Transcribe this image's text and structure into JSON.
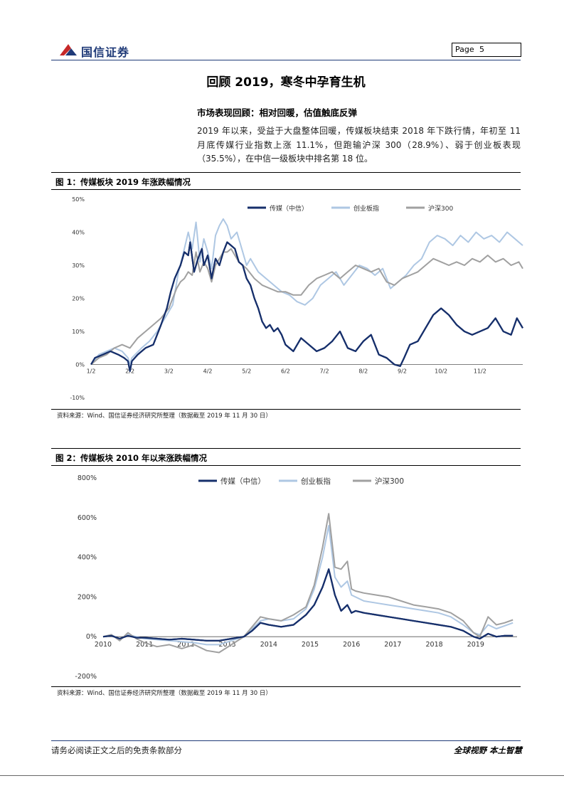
{
  "header": {
    "company": "国信证券",
    "page_label": "Page",
    "page_number": "5"
  },
  "title": "回顾 2019，寒冬中孕育生机",
  "section_title": "市场表现回顾：相对回暖，估值触底反弹",
  "paragraph": "2019 年以来，受益于大盘整体回暖，传媒板块结束 2018 年下跌行情，年初至 11 月底传媒行业指数上涨 11.1%，但跑输沪深 300（28.9%）、弱于创业板表现（35.5%），在中信一级板块中排名第 18 位。",
  "figure1": {
    "title": "图 1：传媒板块 2019 年涨跌幅情况",
    "source": "资料来源：Wind、国信证券经济研究所整理（数据截至 2019 年 11 月 30 日）"
  },
  "figure2": {
    "title": "图 2：传媒板块 2010 年以来涨跌幅情况",
    "source": "资料来源：Wind、国信证券经济研究所整理（数据截至 2019 年 11 月 30 日）"
  },
  "colors": {
    "media": "#162f6b",
    "chinext": "#aec7e3",
    "csi300": "#a0a0a0",
    "brand": "#1f3a78"
  },
  "chart_data": [
    {
      "type": "line",
      "yticks": [
        "50%",
        "40%",
        "30%",
        "20%",
        "10%",
        "0%",
        "-10%"
      ],
      "ylim": [
        -10,
        50
      ],
      "x_tick_labels": [
        "1/2",
        "2/2",
        "3/2",
        "4/2",
        "5/2",
        "6/2",
        "7/2",
        "8/2",
        "9/2",
        "10/2",
        "11/2"
      ],
      "x_range": [
        0,
        11.1
      ],
      "legend_position": "top",
      "series": [
        {
          "name": "传媒（中信）",
          "color": "#162f6b",
          "x": [
            0,
            0.1,
            0.3,
            0.5,
            0.7,
            0.85,
            0.95,
            1.0,
            1.05,
            1.2,
            1.4,
            1.6,
            1.8,
            1.95,
            2.05,
            2.15,
            2.3,
            2.4,
            2.5,
            2.55,
            2.65,
            2.75,
            2.85,
            2.9,
            3.0,
            3.1,
            3.2,
            3.3,
            3.4,
            3.5,
            3.6,
            3.7,
            3.8,
            3.9,
            4.0,
            4.1,
            4.2,
            4.3,
            4.4,
            4.5,
            4.6,
            4.7,
            4.8,
            4.9,
            5.0,
            5.2,
            5.4,
            5.6,
            5.8,
            6.0,
            6.2,
            6.4,
            6.6,
            6.8,
            7.0,
            7.2,
            7.4,
            7.6,
            7.8,
            7.95,
            8.05,
            8.2,
            8.4,
            8.6,
            8.8,
            9.0,
            9.2,
            9.4,
            9.6,
            9.8,
            10.0,
            10.2,
            10.4,
            10.6,
            10.8,
            10.95,
            11.05,
            11.1
          ],
          "y": [
            0,
            2,
            3,
            4,
            3,
            2,
            1,
            -2,
            1,
            3,
            5,
            6,
            12,
            17,
            22,
            26,
            30,
            34,
            33,
            37,
            28,
            32,
            35,
            30,
            33,
            26,
            32,
            30,
            34,
            37,
            36,
            35,
            31,
            30,
            26,
            24,
            20,
            17,
            13,
            11,
            12,
            10,
            11,
            9,
            6,
            4,
            8,
            6,
            4,
            5,
            7,
            10,
            5,
            4,
            7,
            9,
            3,
            2,
            0,
            -0.5,
            2,
            6,
            7,
            11,
            15,
            17,
            15,
            12,
            10,
            9,
            10,
            11,
            14,
            10,
            9,
            14,
            12,
            11
          ]
        },
        {
          "name": "创业板指",
          "color": "#aec7e3",
          "x": [
            0,
            0.2,
            0.4,
            0.6,
            0.8,
            0.95,
            1.0,
            1.05,
            1.3,
            1.5,
            1.7,
            1.9,
            2.1,
            2.25,
            2.4,
            2.5,
            2.6,
            2.7,
            2.8,
            2.9,
            3.0,
            3.1,
            3.2,
            3.3,
            3.4,
            3.5,
            3.6,
            3.75,
            3.9,
            4.0,
            4.1,
            4.3,
            4.5,
            4.7,
            4.9,
            5.1,
            5.3,
            5.5,
            5.7,
            5.9,
            6.1,
            6.3,
            6.5,
            6.7,
            6.9,
            7.1,
            7.3,
            7.5,
            7.7,
            7.9,
            8.1,
            8.3,
            8.5,
            8.7,
            8.9,
            9.1,
            9.3,
            9.5,
            9.7,
            9.9,
            10.1,
            10.3,
            10.5,
            10.7,
            10.9,
            11.0,
            11.1
          ],
          "y": [
            0,
            3,
            4,
            5,
            4,
            2,
            0,
            2,
            5,
            7,
            10,
            14,
            18,
            28,
            35,
            40,
            35,
            43,
            31,
            38,
            34,
            29,
            39,
            42,
            44,
            42,
            38,
            40,
            34,
            30,
            32,
            28,
            26,
            24,
            22,
            21,
            19,
            18,
            20,
            24,
            26,
            28,
            24,
            27,
            30,
            29,
            27,
            29,
            23,
            25,
            27,
            30,
            32,
            37,
            39,
            38,
            36,
            39,
            37,
            40,
            38,
            39,
            37,
            40,
            38,
            37,
            36
          ]
        },
        {
          "name": "沪深300",
          "color": "#a0a0a0",
          "x": [
            0,
            0.2,
            0.4,
            0.6,
            0.8,
            1.0,
            1.2,
            1.4,
            1.6,
            1.8,
            2.0,
            2.1,
            2.2,
            2.3,
            2.4,
            2.5,
            2.6,
            2.7,
            2.8,
            2.9,
            3.0,
            3.1,
            3.2,
            3.3,
            3.4,
            3.5,
            3.6,
            3.7,
            3.8,
            3.9,
            4.0,
            4.2,
            4.4,
            4.6,
            4.8,
            5.0,
            5.2,
            5.4,
            5.6,
            5.8,
            6.0,
            6.2,
            6.4,
            6.6,
            6.8,
            7.0,
            7.2,
            7.4,
            7.6,
            7.8,
            8.0,
            8.2,
            8.4,
            8.6,
            8.8,
            9.0,
            9.2,
            9.4,
            9.6,
            9.8,
            10.0,
            10.2,
            10.4,
            10.6,
            10.8,
            11.0,
            11.1
          ],
          "y": [
            0,
            2,
            3,
            5,
            6,
            5,
            8,
            10,
            12,
            14,
            17,
            20,
            23,
            25,
            26,
            28,
            27,
            34,
            28,
            31,
            29,
            25,
            30,
            32,
            34,
            34,
            35,
            33,
            31,
            30,
            29,
            26,
            24,
            23,
            22,
            22,
            21,
            21,
            24,
            26,
            27,
            28,
            26,
            28,
            30,
            29,
            28,
            29,
            25,
            24,
            26,
            27,
            28,
            30,
            32,
            31,
            30,
            31,
            30,
            32,
            31,
            33,
            31,
            32,
            30,
            31,
            29
          ]
        }
      ]
    },
    {
      "type": "line",
      "yticks": [
        "800%",
        "600%",
        "400%",
        "200%",
        "0%",
        "-200%"
      ],
      "ylim": [
        -200,
        800
      ],
      "x_tick_labels": [
        "2010",
        "2011",
        "2012",
        "2013",
        "2014",
        "2015",
        "2016",
        "2017",
        "2018",
        "2019"
      ],
      "x_range": [
        2010,
        2020
      ],
      "legend_position": "top",
      "series": [
        {
          "name": "传媒（中信）",
          "color": "#162f6b",
          "x": [
            2010.0,
            2010.2,
            2010.4,
            2010.6,
            2010.8,
            2011.0,
            2011.3,
            2011.6,
            2011.9,
            2012.2,
            2012.5,
            2012.8,
            2013.1,
            2013.4,
            2013.6,
            2013.8,
            2014.0,
            2014.3,
            2014.6,
            2014.9,
            2015.1,
            2015.3,
            2015.45,
            2015.6,
            2015.75,
            2015.9,
            2016.0,
            2016.1,
            2016.3,
            2016.6,
            2016.9,
            2017.2,
            2017.5,
            2017.8,
            2018.1,
            2018.4,
            2018.7,
            2018.95,
            2019.1,
            2019.3,
            2019.5,
            2019.7,
            2019.9
          ],
          "y": [
            0,
            5,
            -10,
            5,
            -5,
            -5,
            -10,
            -15,
            -10,
            -15,
            -20,
            -20,
            -10,
            0,
            30,
            70,
            60,
            50,
            60,
            110,
            160,
            250,
            340,
            210,
            130,
            160,
            120,
            130,
            120,
            110,
            100,
            90,
            80,
            70,
            60,
            50,
            30,
            0,
            -10,
            15,
            0,
            5,
            5
          ]
        },
        {
          "name": "创业板指",
          "color": "#aec7e3",
          "x": [
            2010.0,
            2010.2,
            2010.4,
            2010.6,
            2010.8,
            2011.0,
            2011.3,
            2011.6,
            2011.9,
            2012.2,
            2012.5,
            2012.8,
            2013.1,
            2013.4,
            2013.6,
            2013.8,
            2014.0,
            2014.3,
            2014.6,
            2014.9,
            2015.1,
            2015.3,
            2015.45,
            2015.6,
            2015.75,
            2015.9,
            2016.0,
            2016.1,
            2016.3,
            2016.6,
            2016.9,
            2017.2,
            2017.5,
            2017.8,
            2018.1,
            2018.4,
            2018.7,
            2018.95,
            2019.1,
            2019.3,
            2019.5,
            2019.7,
            2019.9
          ],
          "y": [
            0,
            10,
            -15,
            10,
            0,
            -10,
            -15,
            -20,
            -25,
            -30,
            -40,
            -40,
            -20,
            0,
            40,
            80,
            90,
            80,
            90,
            140,
            240,
            400,
            560,
            300,
            250,
            280,
            210,
            200,
            180,
            170,
            160,
            150,
            140,
            130,
            120,
            100,
            60,
            20,
            10,
            60,
            40,
            55,
            70
          ]
        },
        {
          "name": "沪深300",
          "color": "#a0a0a0",
          "x": [
            2010.0,
            2010.2,
            2010.4,
            2010.6,
            2010.8,
            2011.0,
            2011.3,
            2011.6,
            2011.9,
            2012.2,
            2012.5,
            2012.8,
            2013.1,
            2013.4,
            2013.6,
            2013.8,
            2014.0,
            2014.3,
            2014.6,
            2014.9,
            2015.1,
            2015.3,
            2015.45,
            2015.6,
            2015.75,
            2015.9,
            2016.0,
            2016.1,
            2016.3,
            2016.6,
            2016.9,
            2017.2,
            2017.5,
            2017.8,
            2018.1,
            2018.4,
            2018.7,
            2018.95,
            2019.1,
            2019.3,
            2019.5,
            2019.7,
            2019.9
          ],
          "y": [
            0,
            10,
            -20,
            20,
            -10,
            -30,
            -50,
            -40,
            -60,
            -40,
            -70,
            -80,
            -40,
            0,
            50,
            100,
            90,
            80,
            110,
            150,
            260,
            450,
            620,
            350,
            340,
            380,
            240,
            230,
            220,
            210,
            200,
            180,
            160,
            150,
            140,
            120,
            80,
            20,
            0,
            100,
            60,
            70,
            85
          ]
        }
      ]
    }
  ],
  "footer": {
    "disclaimer": "请务必阅读正文之后的免责条款部分",
    "slogan": "全球视野  本土智慧"
  }
}
